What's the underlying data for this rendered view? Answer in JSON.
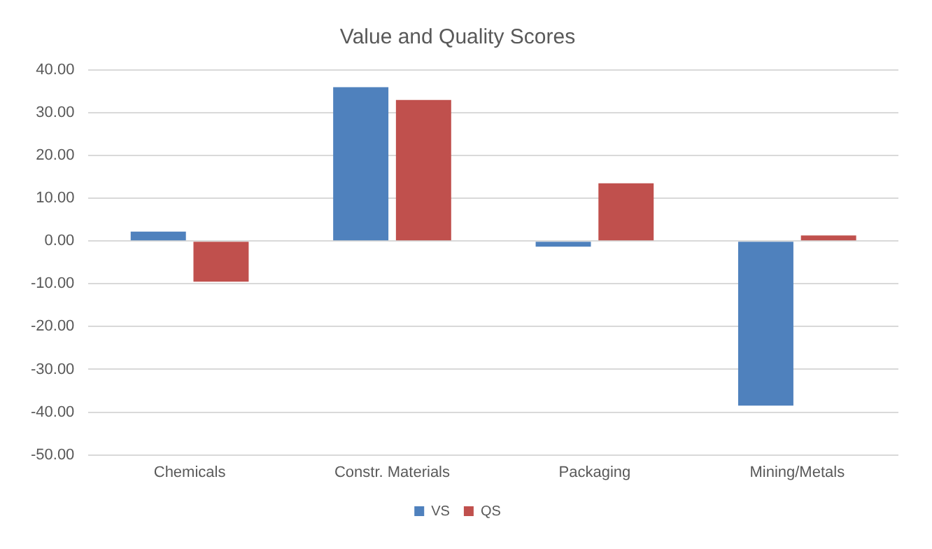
{
  "chart_data": {
    "type": "bar",
    "title": "Value and Quality Scores",
    "categories": [
      "Chemicals",
      "Constr. Materials",
      "Packaging",
      "Mining/Metals"
    ],
    "series": [
      {
        "name": "VS",
        "color": "#4f81bd",
        "values": [
          2.2,
          36.0,
          -1.3,
          -38.5
        ]
      },
      {
        "name": "QS",
        "color": "#c0504d",
        "values": [
          -9.5,
          33.0,
          13.5,
          1.3
        ]
      }
    ],
    "ylim": [
      -50,
      40
    ],
    "yticks": [
      {
        "value": -50,
        "label": "-50.00"
      },
      {
        "value": -40,
        "label": "-40.00"
      },
      {
        "value": -30,
        "label": "-30.00"
      },
      {
        "value": -20,
        "label": "-20.00"
      },
      {
        "value": -10,
        "label": "-10.00"
      },
      {
        "value": 0,
        "label": "0.00"
      },
      {
        "value": 10,
        "label": "10.00"
      },
      {
        "value": 20,
        "label": "20.00"
      },
      {
        "value": 30,
        "label": "30.00"
      },
      {
        "value": 40,
        "label": "40.00"
      }
    ],
    "grid": "y",
    "legend": "bottom"
  }
}
